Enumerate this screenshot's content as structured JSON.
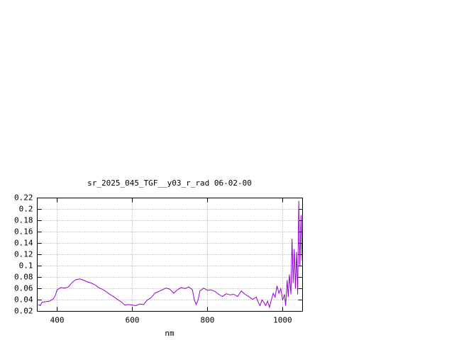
{
  "chart_data": {
    "type": "line",
    "title": "sr_2025_045_TGF__y03_r_rad 06-02-00",
    "xlabel": "nm",
    "x": [
      350,
      355,
      360,
      370,
      380,
      390,
      395,
      400,
      410,
      420,
      430,
      440,
      450,
      460,
      470,
      480,
      490,
      500,
      510,
      520,
      530,
      540,
      550,
      560,
      570,
      580,
      590,
      600,
      610,
      620,
      630,
      640,
      650,
      660,
      670,
      680,
      690,
      700,
      710,
      720,
      730,
      740,
      750,
      760,
      765,
      770,
      775,
      780,
      790,
      800,
      810,
      820,
      830,
      840,
      850,
      860,
      870,
      880,
      890,
      900,
      910,
      920,
      930,
      935,
      940,
      945,
      950,
      955,
      960,
      965,
      970,
      975,
      980,
      985,
      990,
      995,
      1000,
      1005,
      1008,
      1012,
      1015,
      1018,
      1022,
      1025,
      1028,
      1031,
      1034,
      1037,
      1040,
      1043,
      1046,
      1049,
      1052
    ],
    "series": [
      {
        "color": "#9400d3",
        "values": [
          0.032,
          0.03,
          0.036,
          0.037,
          0.038,
          0.042,
          0.048,
          0.058,
          0.062,
          0.061,
          0.063,
          0.071,
          0.076,
          0.077,
          0.075,
          0.072,
          0.07,
          0.067,
          0.062,
          0.059,
          0.055,
          0.05,
          0.046,
          0.041,
          0.037,
          0.031,
          0.032,
          0.031,
          0.03,
          0.033,
          0.032,
          0.04,
          0.044,
          0.052,
          0.055,
          0.058,
          0.061,
          0.059,
          0.052,
          0.058,
          0.062,
          0.06,
          0.063,
          0.058,
          0.04,
          0.032,
          0.04,
          0.056,
          0.061,
          0.057,
          0.058,
          0.055,
          0.05,
          0.046,
          0.051,
          0.049,
          0.05,
          0.046,
          0.056,
          0.05,
          0.046,
          0.041,
          0.045,
          0.036,
          0.03,
          0.04,
          0.036,
          0.03,
          0.038,
          0.027,
          0.04,
          0.052,
          0.045,
          0.065,
          0.052,
          0.06,
          0.04,
          0.05,
          0.03,
          0.075,
          0.045,
          0.085,
          0.05,
          0.148,
          0.07,
          0.13,
          0.06,
          0.125,
          0.05,
          0.215,
          0.1,
          0.19,
          0.11
        ]
      }
    ],
    "xlim": [
      347,
      1053
    ],
    "ylim": [
      0.02,
      0.22
    ],
    "xticks": [
      400,
      600,
      800,
      1000
    ],
    "yticks": [
      0.02,
      0.04,
      0.06,
      0.08,
      0.1,
      0.12,
      0.14,
      0.16,
      0.18,
      0.2,
      0.22
    ],
    "grid": true
  }
}
